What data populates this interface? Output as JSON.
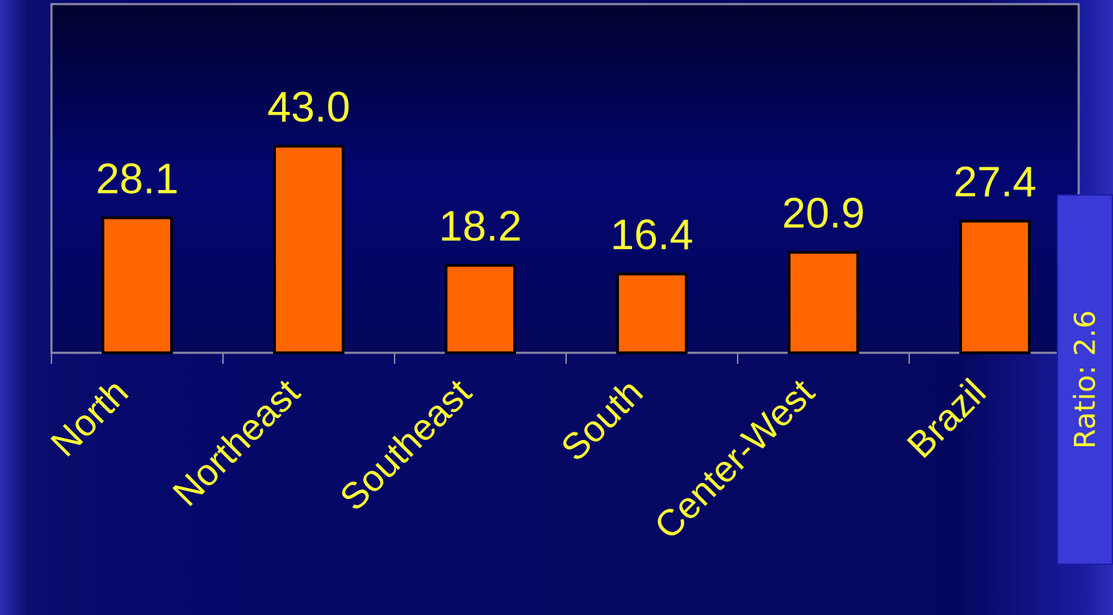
{
  "chart_data": {
    "type": "bar",
    "categories": [
      "North",
      "Northeast",
      "Southeast",
      "South",
      "Center-West",
      "Brazil"
    ],
    "values": [
      28.1,
      43.0,
      18.2,
      16.4,
      20.9,
      27.4
    ],
    "value_labels": [
      "28.1",
      "43.0",
      "18.2",
      "16.4",
      "20.9",
      "27.4"
    ],
    "title": "",
    "xlabel": "",
    "ylabel": "",
    "ylim": [
      0,
      50
    ],
    "grid": false,
    "legend": "none",
    "colors": {
      "bar_fill": "#ff6600",
      "bar_stroke": "#000000",
      "text": "#ffff33",
      "plot_border": "#8a8aa8"
    }
  },
  "side_annotation": {
    "text": "Ratio: 2.6"
  }
}
